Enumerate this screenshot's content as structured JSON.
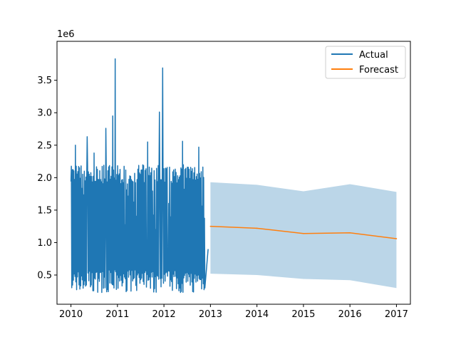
{
  "chart_data": {
    "type": "line",
    "title": "",
    "xlabel": "",
    "ylabel": "",
    "y_offset_label": "1e6",
    "xlim": [
      2009.7,
      2017.3
    ],
    "ylim": [
      50000,
      4100000
    ],
    "x_ticks": [
      2010,
      2011,
      2012,
      2013,
      2014,
      2015,
      2016,
      2017
    ],
    "x_tick_labels": [
      "2010",
      "2011",
      "2012",
      "2013",
      "2014",
      "2015",
      "2016",
      "2017"
    ],
    "y_ticks": [
      500000,
      1000000,
      1500000,
      2000000,
      2500000,
      3000000,
      3500000
    ],
    "y_tick_labels": [
      "0.5",
      "1.0",
      "1.5",
      "2.0",
      "2.5",
      "3.0",
      "3.5"
    ],
    "grid": false,
    "legend": {
      "position": "top-right",
      "entries": [
        "Actual",
        "Forecast"
      ]
    },
    "series": [
      {
        "name": "Actual",
        "color": "#1f77b4",
        "x_range": [
          2010.0,
          2012.95
        ],
        "approx_band_min": 230000,
        "approx_band_max": 2200000,
        "spikes": [
          {
            "x": 2010.0,
            "y": 1940000
          },
          {
            "x": 2010.1,
            "y": 2500000
          },
          {
            "x": 2010.35,
            "y": 2630000
          },
          {
            "x": 2010.5,
            "y": 2380000
          },
          {
            "x": 2010.75,
            "y": 2760000
          },
          {
            "x": 2010.9,
            "y": 2950000
          },
          {
            "x": 2010.95,
            "y": 3830000
          },
          {
            "x": 2011.65,
            "y": 2550000
          },
          {
            "x": 2011.9,
            "y": 3010000
          },
          {
            "x": 2011.97,
            "y": 3690000
          },
          {
            "x": 2012.4,
            "y": 2560000
          },
          {
            "x": 2012.75,
            "y": 2470000
          }
        ],
        "tail": [
          {
            "x": 2012.88,
            "y": 300000
          },
          {
            "x": 2012.95,
            "y": 900000
          }
        ]
      },
      {
        "name": "Forecast",
        "color": "#ff7f0e",
        "x": [
          2013,
          2014,
          2015,
          2016,
          2017
        ],
        "y": [
          1250000,
          1220000,
          1140000,
          1150000,
          1060000
        ],
        "lower": [
          520000,
          500000,
          440000,
          420000,
          300000
        ],
        "upper": [
          1930000,
          1890000,
          1790000,
          1900000,
          1780000
        ],
        "band_color": "#1f77b4"
      }
    ]
  }
}
